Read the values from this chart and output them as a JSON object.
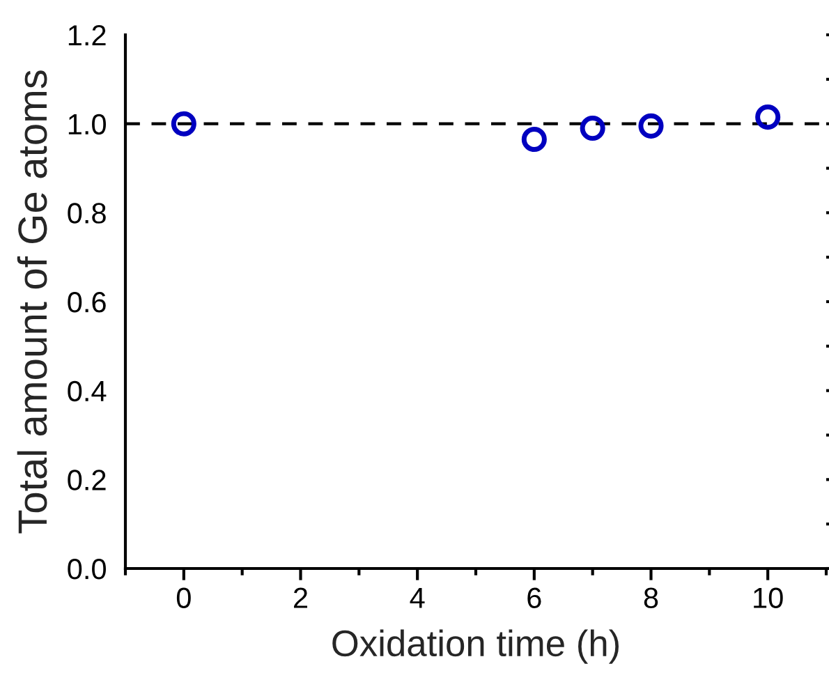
{
  "chart_data": {
    "type": "scatter",
    "xlabel": "Oxidation time (h)",
    "ylabel": "Total amount of Ge atoms",
    "x": [
      0,
      6,
      7,
      8,
      10
    ],
    "series": [
      {
        "color": "#0000c0",
        "values": [
          1.0,
          0.965,
          0.99,
          0.995,
          1.015
        ]
      }
    ],
    "marker": "circle",
    "xlim": [
      -1,
      11
    ],
    "xticks": [
      0,
      2,
      4,
      6,
      8,
      10
    ],
    "ylim": [
      0,
      1.2
    ],
    "yticks": [
      {
        "value": 0,
        "label": "0.0"
      },
      0.2,
      0.4,
      0.6,
      0.8,
      {
        "value": 1,
        "label": "1.0"
      },
      1.2
    ],
    "ref_lines": [
      {
        "axis": "y",
        "value": 1.0,
        "color": "#000000",
        "line_style": "dashed"
      }
    ],
    "grid": false,
    "legend": false
  }
}
